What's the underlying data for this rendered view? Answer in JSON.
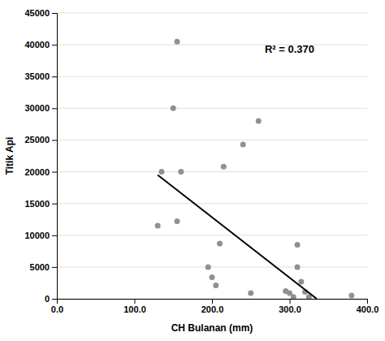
{
  "chart_data": {
    "type": "scatter",
    "xlabel": "CH Bulanan (mm)",
    "ylabel": "Titik Api",
    "annotation": "R² = 0.370",
    "series": [
      {
        "type": "scatter",
        "color": "#909090",
        "marker": "circle",
        "x": [
          130,
          135,
          150,
          155,
          155,
          160,
          195,
          200,
          205,
          210,
          215,
          240,
          250,
          260,
          295,
          300,
          305,
          310,
          310,
          315,
          320,
          325,
          380
        ],
        "values": [
          11500,
          20000,
          30000,
          12200,
          40500,
          20000,
          5000,
          3400,
          2100,
          8700,
          20800,
          24300,
          900,
          28000,
          1200,
          900,
          300,
          8500,
          5000,
          2700,
          1100,
          300,
          500
        ]
      },
      {
        "type": "line",
        "color": "#000000",
        "line_style": "solid",
        "x": [
          130,
          335
        ],
        "values": [
          19500,
          0
        ]
      }
    ],
    "xlim": [
      0.0,
      400.0
    ],
    "ylim": [
      0,
      45000
    ],
    "xticks": [
      {
        "value": 0.0,
        "label": "0.0"
      },
      {
        "value": 100.0,
        "label": "100.0"
      },
      {
        "value": 200.0,
        "label": "200.0"
      },
      {
        "value": 300.0,
        "label": "300.0"
      },
      {
        "value": 400.0,
        "label": "400.0"
      }
    ],
    "yticks": [
      0,
      5000,
      10000,
      15000,
      20000,
      25000,
      30000,
      35000,
      40000,
      45000
    ],
    "grid": "y"
  }
}
